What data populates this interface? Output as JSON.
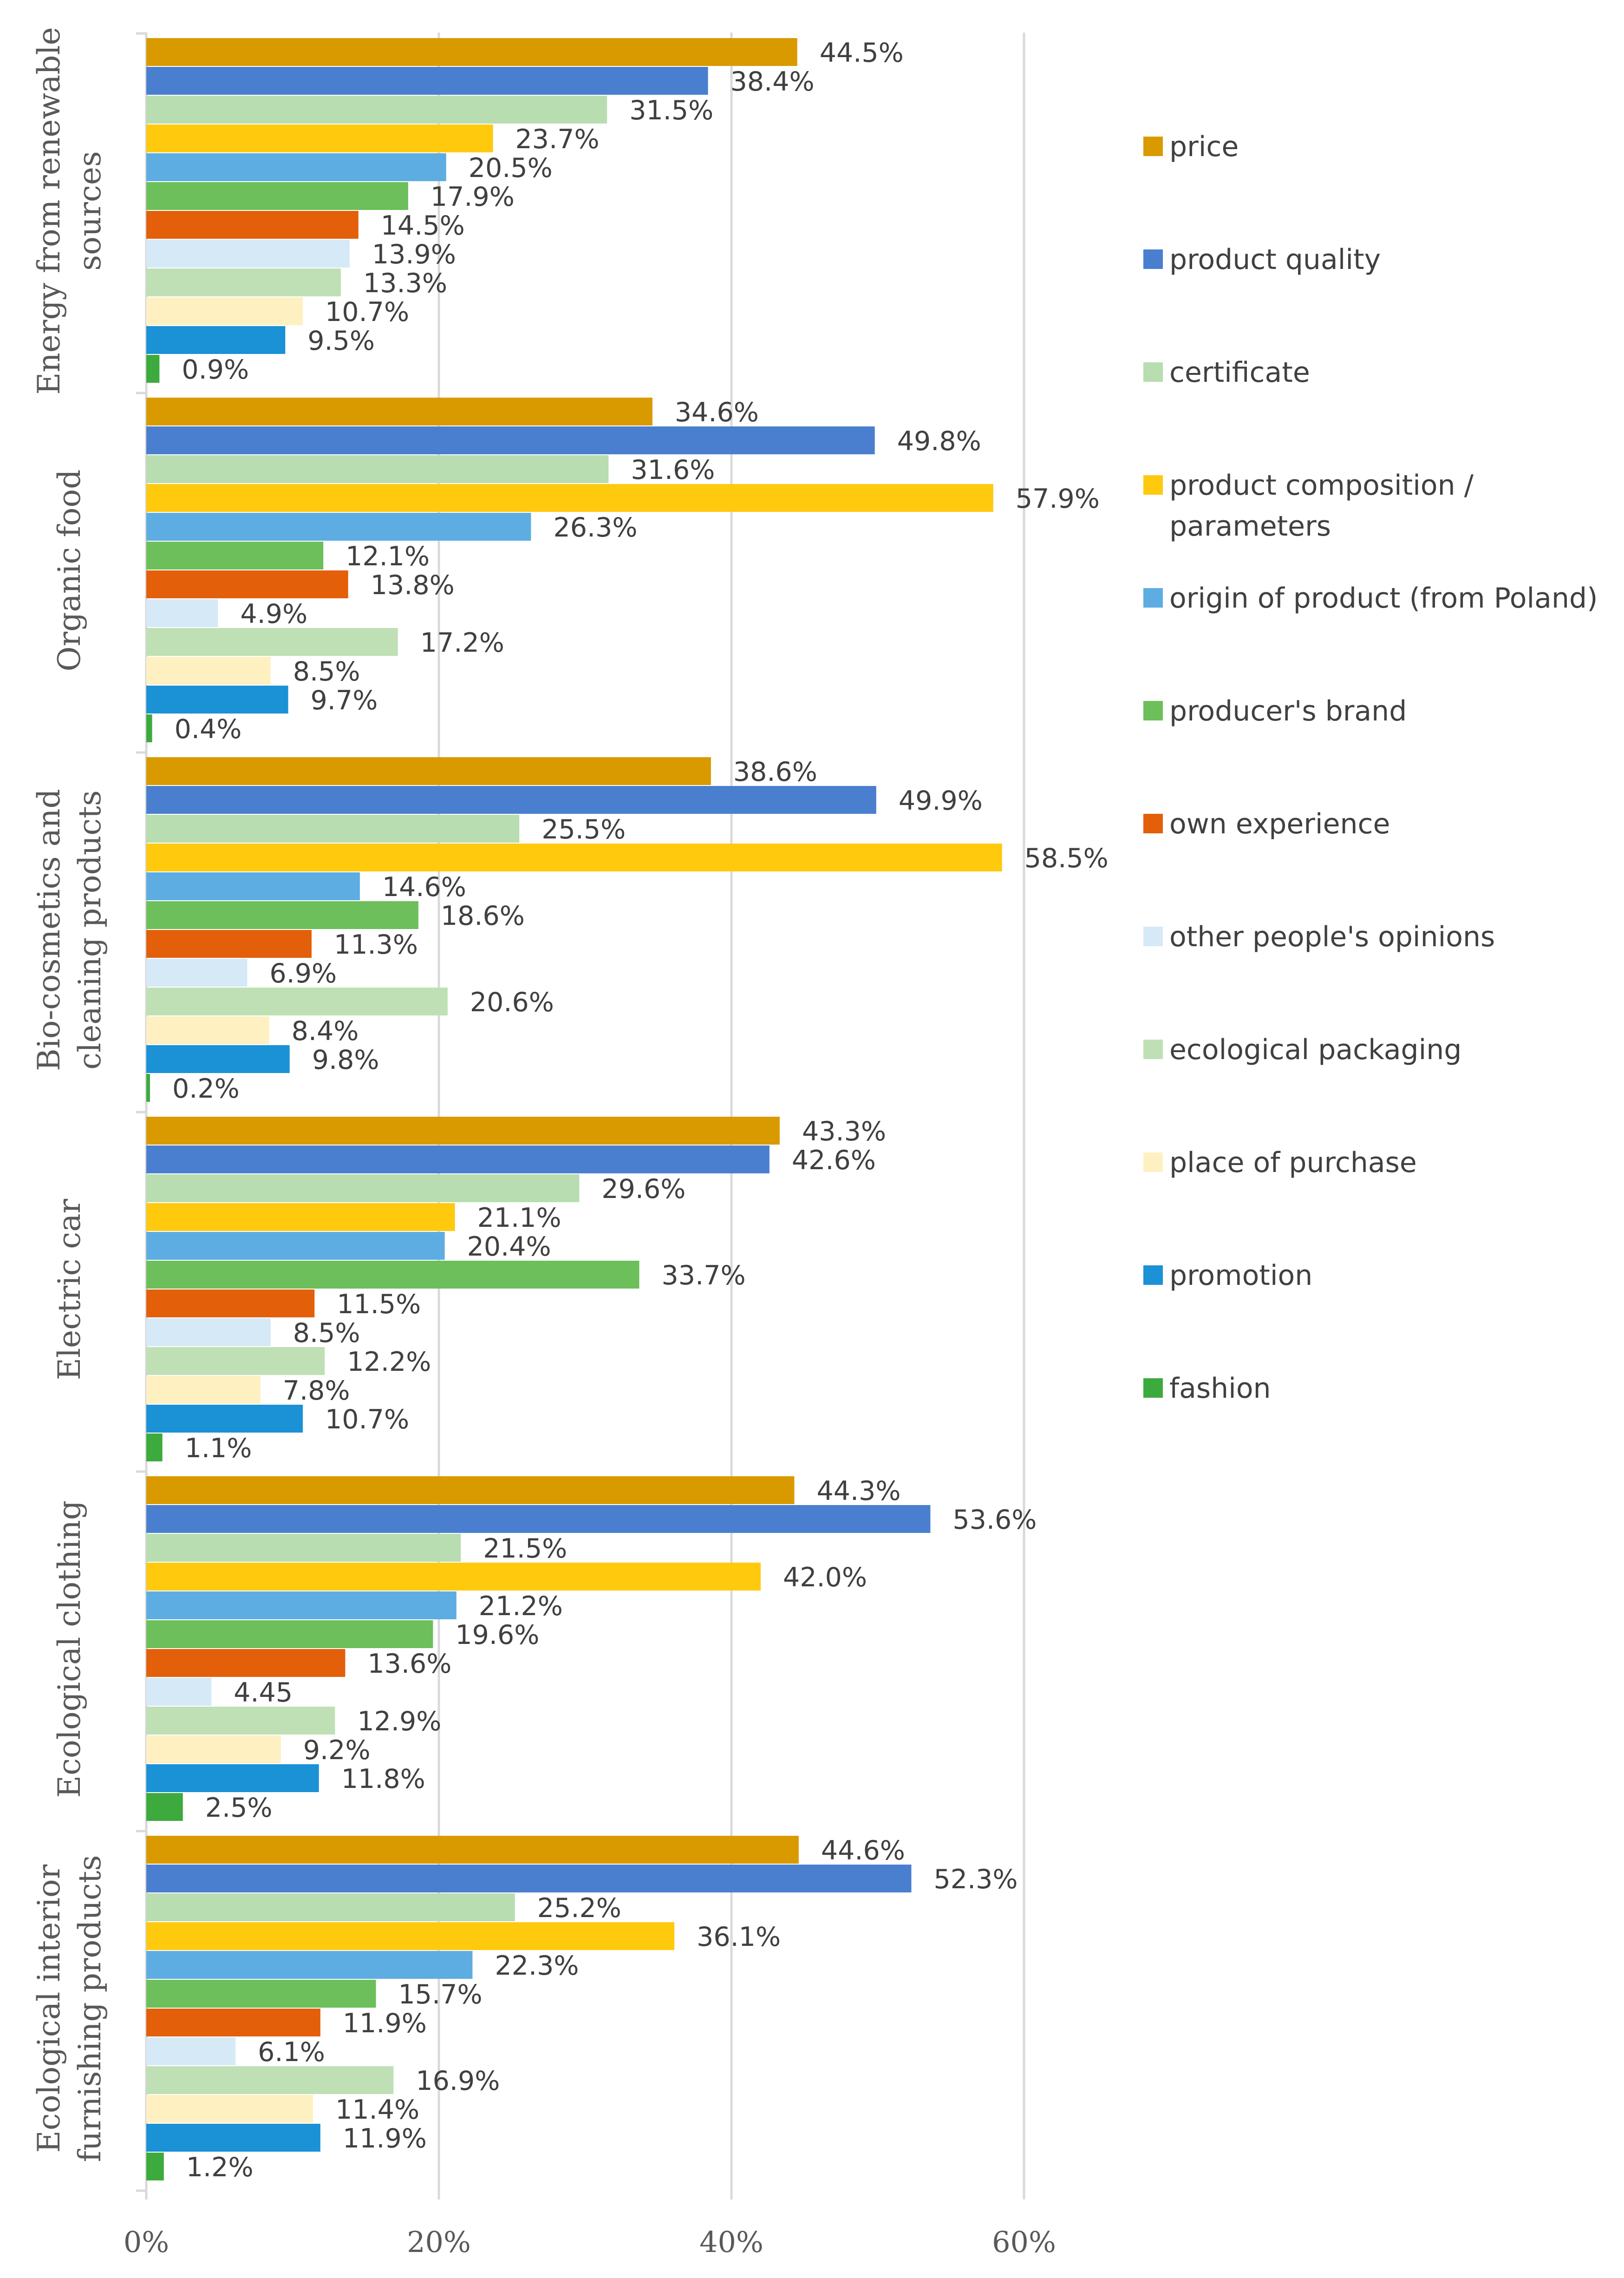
{
  "chart_data": {
    "type": "bar",
    "orientation": "horizontal",
    "xlim": [
      0,
      60
    ],
    "x_ticks": [
      "0%",
      "20%",
      "40%",
      "60%"
    ],
    "grid": true,
    "legend_position": "right",
    "categories": [
      {
        "id": "energy",
        "label_lines": [
          "Energy from renewable",
          "sources"
        ]
      },
      {
        "id": "food",
        "label_lines": [
          "Organic food"
        ]
      },
      {
        "id": "cosmetics",
        "label_lines": [
          "Bio-cosmetics and",
          "cleaning products"
        ]
      },
      {
        "id": "car",
        "label_lines": [
          "Electric car"
        ]
      },
      {
        "id": "clothing",
        "label_lines": [
          "Ecological clothing"
        ]
      },
      {
        "id": "furnishing",
        "label_lines": [
          "Ecological interior",
          "furnishing products"
        ]
      }
    ],
    "series": [
      {
        "name": "price",
        "label_lines": [
          "price"
        ],
        "color": "#D99A00",
        "values": [
          44.5,
          34.6,
          38.6,
          43.3,
          44.3,
          44.6
        ],
        "labels": [
          "44.5%",
          "34.6%",
          "38.6%",
          "43.3%",
          "44.3%",
          "44.6%"
        ]
      },
      {
        "name": "product quality",
        "label_lines": [
          "product quality"
        ],
        "color": "#4A7FCF",
        "values": [
          38.4,
          49.8,
          49.9,
          42.6,
          53.6,
          52.3
        ],
        "labels": [
          "38.4%",
          "49.8%",
          "49.9%",
          "42.6%",
          "53.6%",
          "52.3%"
        ]
      },
      {
        "name": "certificate",
        "label_lines": [
          "certificate"
        ],
        "color": "#B8DDB0",
        "values": [
          31.5,
          31.6,
          25.5,
          29.6,
          21.5,
          25.2
        ],
        "labels": [
          "31.5%",
          "31.6%",
          "25.5%",
          "29.6%",
          "21.5%",
          "25.2%"
        ]
      },
      {
        "name": "product composition / parameters",
        "label_lines": [
          "product composition /",
          "parameters"
        ],
        "color": "#FFC90E",
        "values": [
          23.7,
          57.9,
          58.5,
          21.1,
          42.0,
          36.1
        ],
        "labels": [
          "23.7%",
          "57.9%",
          "58.5%",
          "21.1%",
          "42.0%",
          "36.1%"
        ]
      },
      {
        "name": "origin of product (from Poland)",
        "label_lines": [
          "origin of product (from Poland)"
        ],
        "color": "#5DADE2",
        "values": [
          20.5,
          26.3,
          14.6,
          20.4,
          21.2,
          22.3
        ],
        "labels": [
          "20.5%",
          "26.3%",
          "14.6%",
          "20.4%",
          "21.2%",
          "22.3%"
        ]
      },
      {
        "name": "producer's brand",
        "label_lines": [
          "producer's brand"
        ],
        "color": "#6CBF5A",
        "values": [
          17.9,
          12.1,
          18.6,
          33.7,
          19.6,
          15.7
        ],
        "labels": [
          "17.9%",
          "12.1%",
          "18.6%",
          "33.7%",
          "19.6%",
          "15.7%"
        ]
      },
      {
        "name": "own experience",
        "label_lines": [
          "own experience"
        ],
        "color": "#E35F0A",
        "values": [
          14.5,
          13.8,
          11.3,
          11.5,
          13.6,
          11.9
        ],
        "labels": [
          "14.5%",
          "13.8%",
          "11.3%",
          "11.5%",
          "13.6%",
          "11.9%"
        ]
      },
      {
        "name": "other people's opinions",
        "label_lines": [
          "other people's opinions"
        ],
        "color": "#D6E9F7",
        "values": [
          13.9,
          4.9,
          6.9,
          8.5,
          4.45,
          6.1
        ],
        "labels": [
          "13.9%",
          "4.9%",
          "6.9%",
          "8.5%",
          "4.45",
          "6.1%"
        ]
      },
      {
        "name": "ecological packaging",
        "label_lines": [
          "ecological packaging"
        ],
        "color": "#BFE0B5",
        "values": [
          13.3,
          17.2,
          20.6,
          12.2,
          12.9,
          16.9
        ],
        "labels": [
          "13.3%",
          "17.2%",
          "20.6%",
          "12.2%",
          "12.9%",
          "16.9%"
        ]
      },
      {
        "name": "place of purchase",
        "label_lines": [
          "place of purchase"
        ],
        "color": "#FFF0C2",
        "values": [
          10.7,
          8.5,
          8.4,
          7.8,
          9.2,
          11.4
        ],
        "labels": [
          "10.7%",
          "8.5%",
          "8.4%",
          "7.8%",
          "9.2%",
          "11.4%"
        ]
      },
      {
        "name": "promotion",
        "label_lines": [
          "promotion"
        ],
        "color": "#1B91D6",
        "values": [
          9.5,
          9.7,
          9.8,
          10.7,
          11.8,
          11.9
        ],
        "labels": [
          "9.5%",
          "9.7%",
          "9.8%",
          "10.7%",
          "11.8%",
          "11.9%"
        ]
      },
      {
        "name": "fashion",
        "label_lines": [
          "fashion"
        ],
        "color": "#3DAA3D",
        "values": [
          0.9,
          0.4,
          0.2,
          1.1,
          2.5,
          1.2
        ],
        "labels": [
          "0.9%",
          "0.4%",
          "0.2%",
          "1.1%",
          "2.5%",
          "1.2%"
        ]
      }
    ]
  }
}
